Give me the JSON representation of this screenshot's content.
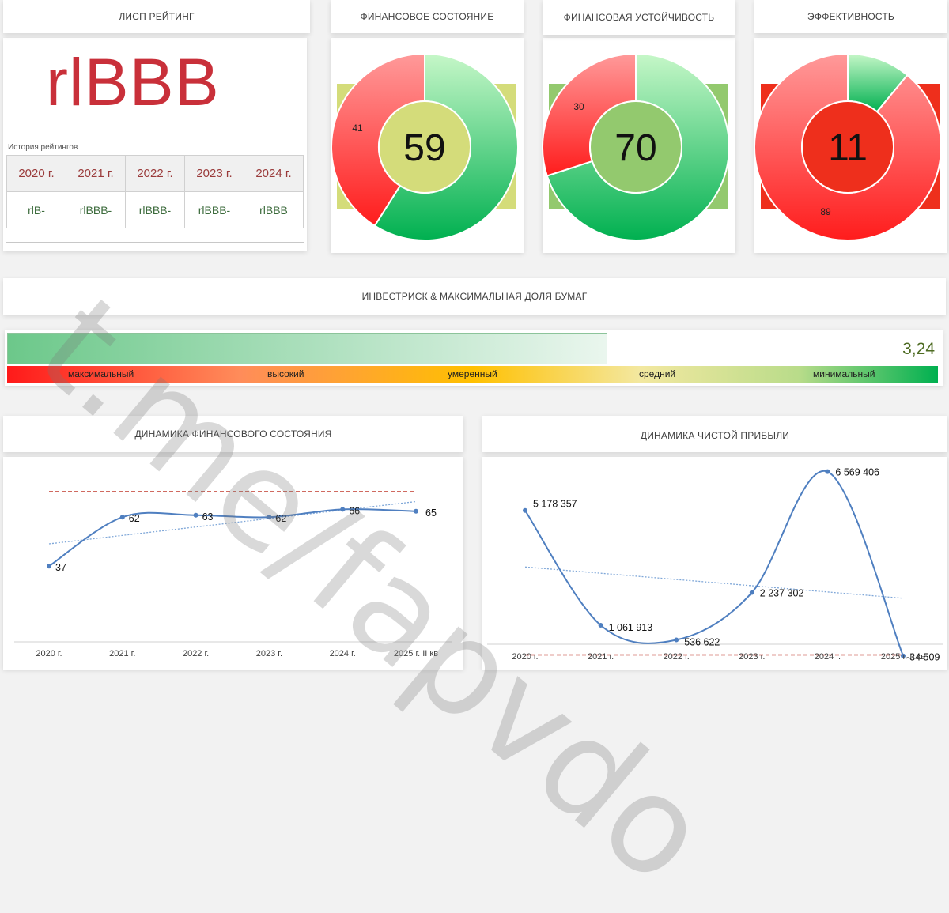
{
  "headers": {
    "rating": "ЛИСП РЕЙТИНГ",
    "fin_state": "ФИНАНСОВОЕ СОСТОЯНИЕ",
    "fin_stability": "ФИНАНСОВАЯ УСТОЙЧИВОСТЬ",
    "efficiency": "ЭФФЕКТИВНОСТЬ",
    "invest_risk": "ИНВЕСТРИСК & МАКСИМАЛЬНАЯ ДОЛЯ БУМАГ",
    "dyn_fin": "ДИНАМИКА ФИНАНСОВОГО СОСТОЯНИЯ",
    "dyn_profit": "ДИНАМИКА ЧИСТОЙ ПРИБЫЛИ"
  },
  "rating": {
    "value": "rlBBB",
    "history_title": "История рейтингов",
    "history": [
      {
        "year": "2020 г.",
        "rating": "rlB-"
      },
      {
        "year": "2021 г.",
        "rating": "rlBBB-"
      },
      {
        "year": "2022 г.",
        "rating": "rlBBB-"
      },
      {
        "year": "2023 г.",
        "rating": "rlBBB-"
      },
      {
        "year": "2024 г.",
        "rating": "rlBBB"
      }
    ]
  },
  "gauges": [
    {
      "id": "fin_state",
      "value": 59,
      "remainder": 41,
      "remainder_label": "41",
      "center_label": "59",
      "center_color": "#d4dc7a",
      "back_color": "#d4dc7a"
    },
    {
      "id": "fin_stability",
      "value": 70,
      "remainder": 30,
      "remainder_label": "30",
      "center_label": "70",
      "center_color": "#93c96e",
      "back_color": "#93c96e"
    },
    {
      "id": "efficiency",
      "value": 11,
      "remainder": 89,
      "remainder_label": "89",
      "center_label": "11",
      "center_color": "#ee2f1c",
      "back_color": "#ee2f1c"
    }
  ],
  "invest_risk": {
    "value_label": "3,24",
    "fill_fraction": 0.645,
    "scale": [
      "максимальный",
      "высокий",
      "умеренный",
      "средний",
      "минимальный"
    ]
  },
  "chart_data": [
    {
      "type": "line",
      "title": "ДИНАМИКА ФИНАНСОВОГО СОСТОЯНИЯ",
      "categories": [
        "2020 г.",
        "2021 г.",
        "2022 г.",
        "2023 г.",
        "2024 г.",
        "2025 г. II кв"
      ],
      "values": [
        37,
        62,
        63,
        62,
        66,
        65
      ],
      "labels": [
        "37",
        "62",
        "63",
        "62",
        "66",
        "65"
      ],
      "ylim": [
        0,
        100
      ],
      "reference_line": 75,
      "trendline": true
    },
    {
      "type": "line",
      "title": "ДИНАМИКА ЧИСТОЙ ПРИБЫЛИ",
      "categories": [
        "2020 г.",
        "2021 г.",
        "2022 г.",
        "2023 г.",
        "2024 г.",
        "2025 г. II кв"
      ],
      "values": [
        5178357,
        1061913,
        536622,
        2237302,
        6569406,
        -34509
      ],
      "labels": [
        "5 178 357",
        "1 061 913",
        "536 622",
        "2 237 302",
        "6 569 406",
        "-34 509"
      ],
      "ylim": [
        -100000,
        6900000
      ],
      "reference_line": 0,
      "trendline": true
    }
  ],
  "colors": {
    "red": "#ff2a2a",
    "green": "#00b050",
    "line": "#4f7fc0",
    "ref_line": "#c0392b"
  },
  "watermark": "t.me/fapvdo"
}
